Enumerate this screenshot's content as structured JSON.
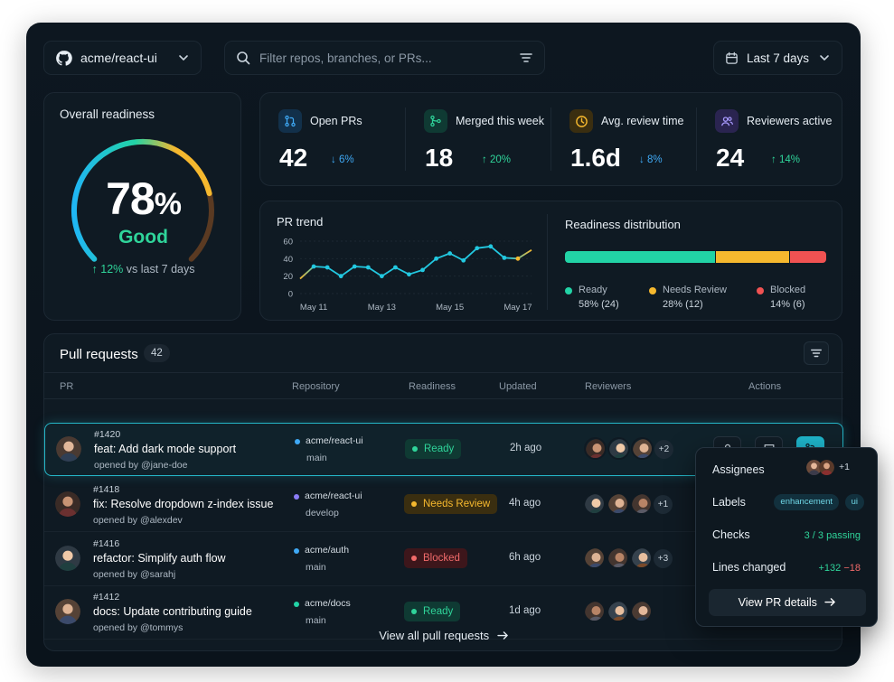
{
  "topbar": {
    "repo": "acme/react-ui",
    "search_placeholder": "Filter repos, branches, or PRs...",
    "date_range": "Last 7 days"
  },
  "readiness": {
    "title": "Overall readiness",
    "percent_value": 78,
    "percent_number": "78",
    "percent_unit": "%",
    "grade": "Good",
    "delta_value": "↑ 12%",
    "delta_text": "vs last 7 days"
  },
  "stats": [
    {
      "label": "Open PRs",
      "value": "42",
      "change": "↓ 6%",
      "color": "#3fa9f5",
      "icon": "git-pull-request-icon"
    },
    {
      "label": "Merged this week",
      "value": "18",
      "change": "↑ 20%",
      "color": "#2fd49a",
      "icon": "git-merge-icon"
    },
    {
      "label": "Avg. review time",
      "value": "1.6d",
      "change": "↓ 8%",
      "color": "#f5b82e",
      "icon": "clock-icon"
    },
    {
      "label": "Reviewers active",
      "value": "24",
      "change": "↑ 14%",
      "color": "#8b7cf6",
      "icon": "users-icon"
    }
  ],
  "trend": {
    "title": "PR trend"
  },
  "chart_data": {
    "type": "line",
    "title": "PR trend",
    "x_ticks": [
      "May 11",
      "May 13",
      "May 15",
      "May 17"
    ],
    "y_ticks": [
      0,
      20,
      40,
      60
    ],
    "ylim": [
      0,
      60
    ],
    "series": [
      {
        "values": [
          17,
          31,
          30,
          20,
          31,
          30,
          20,
          30,
          22,
          27,
          40,
          46,
          38,
          52,
          54,
          41,
          40,
          50
        ]
      }
    ]
  },
  "distribution": {
    "title": "Readiness distribution",
    "segments": [
      {
        "label": "Ready",
        "value": "58% (24)",
        "fraction": 0.58,
        "color": "#22d3a6"
      },
      {
        "label": "Needs Review",
        "value": "28% (12)",
        "fraction": 0.28,
        "color": "#f5b82e"
      },
      {
        "label": "Blocked",
        "value": "14% (6)",
        "fraction": 0.14,
        "color": "#f05252"
      }
    ]
  },
  "pull_requests": {
    "title": "Pull requests",
    "count": "42",
    "columns": [
      "PR",
      "Repository",
      "Readiness",
      "Updated",
      "Reviewers",
      "Actions"
    ],
    "rows": [
      {
        "number": "#1420",
        "title": "feat: Add dark mode support",
        "author": "opened by @jane-doe",
        "repo": "acme/react-ui",
        "branch": "main",
        "repo_color": "#3fa9f5",
        "status": "Ready",
        "updated": "2h ago",
        "more": "+2"
      },
      {
        "number": "#1418",
        "title": "fix: Resolve dropdown z-index issue",
        "author": "opened by @alexdev",
        "repo": "acme/react-ui",
        "branch": "develop",
        "repo_color": "#8b7cf6",
        "status": "Needs Review",
        "updated": "4h ago",
        "more": "+1"
      },
      {
        "number": "#1416",
        "title": "refactor: Simplify auth flow",
        "author": "opened by @sarahj",
        "repo": "acme/auth",
        "branch": "main",
        "repo_color": "#3fa9f5",
        "status": "Blocked",
        "updated": "6h ago",
        "more": "+3"
      },
      {
        "number": "#1412",
        "title": "docs: Update contributing guide",
        "author": "opened by @tommys",
        "repo": "acme/docs",
        "branch": "main",
        "repo_color": "#22d3a6",
        "status": "Ready",
        "updated": "1d ago",
        "more": ""
      }
    ],
    "view_all": "View all pull requests"
  },
  "status_colors": {
    "Ready": {
      "bg": "#0f3a33",
      "fg": "#2fd49a"
    },
    "Needs Review": {
      "bg": "#3a2e10",
      "fg": "#f5b82e"
    },
    "Blocked": {
      "bg": "#3d161b",
      "fg": "#f06a6a"
    }
  },
  "popover": {
    "assignees_label": "Assignees",
    "assignees_more": "+1",
    "labels_label": "Labels",
    "labels": [
      "enhancement",
      "ui"
    ],
    "checks_label": "Checks",
    "checks_value": "3 / 3 passing",
    "lines_label": "Lines changed",
    "lines_added": "+132",
    "lines_removed": "−18",
    "button": "View PR details"
  }
}
